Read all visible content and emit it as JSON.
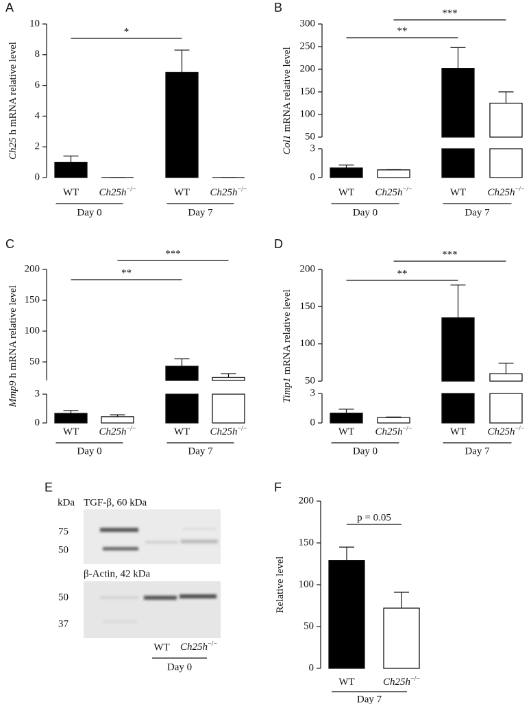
{
  "chart_data": [
    {
      "type": "bar",
      "panel": "A",
      "ylabel_gene": "Ch25",
      "ylabel": "h mRNA relative level",
      "categories": [
        "WT",
        "Ch25h",
        "WT",
        "Ch25h"
      ],
      "category_superscripts": [
        null,
        "−/−",
        null,
        "−/−"
      ],
      "groups": [
        "Day 0",
        "Day 7"
      ],
      "values": [
        1.0,
        0,
        6.85,
        0
      ],
      "errors": [
        0.4,
        0,
        1.45,
        0
      ],
      "colors": [
        "#000000",
        "#ffffff",
        "#000000",
        "#ffffff"
      ],
      "ylim": [
        0,
        10
      ],
      "yticks": [
        0,
        2,
        4,
        6,
        8,
        10
      ],
      "annotations": [
        "*"
      ]
    },
    {
      "type": "bar",
      "panel": "B",
      "ylabel_gene": "Col1",
      "ylabel": "mRNA relative level",
      "categories": [
        "WT",
        "Ch25h",
        "WT",
        "Ch25h"
      ],
      "category_superscripts": [
        null,
        "−/−",
        null,
        "−/−"
      ],
      "groups": [
        "Day 0",
        "Day 7"
      ],
      "values": [
        1.0,
        0.8,
        202,
        125
      ],
      "errors": [
        0.3,
        0.02,
        46,
        25
      ],
      "colors": [
        "#000000",
        "#ffffff",
        "#000000",
        "#ffffff"
      ],
      "ylim": [
        0,
        300
      ],
      "axis_break": [
        3,
        50
      ],
      "yticks": [
        0,
        3,
        50,
        100,
        150,
        200,
        250,
        300
      ],
      "annotations": [
        "**",
        "***"
      ]
    },
    {
      "type": "bar",
      "panel": "C",
      "ylabel_gene": "Mmp9",
      "ylabel": "h mRNA relative level",
      "categories": [
        "WT",
        "Ch25h",
        "WT",
        "Ch25h"
      ],
      "category_superscripts": [
        null,
        "−/−",
        null,
        "−/−"
      ],
      "groups": [
        "Day 0",
        "Day 7"
      ],
      "values": [
        1.0,
        0.65,
        43,
        25
      ],
      "errors": [
        0.3,
        0.2,
        12,
        6
      ],
      "colors": [
        "#000000",
        "#ffffff",
        "#000000",
        "#ffffff"
      ],
      "ylim": [
        0,
        200
      ],
      "axis_break": [
        3,
        20
      ],
      "yticks": [
        0,
        3,
        50,
        100,
        150,
        200
      ],
      "annotations": [
        "**",
        "***"
      ]
    },
    {
      "type": "bar",
      "panel": "D",
      "ylabel_gene": "Timp1",
      "ylabel": "mRNA relative level",
      "categories": [
        "WT",
        "Ch25h",
        "WT",
        "Ch25h"
      ],
      "category_superscripts": [
        null,
        "−/−",
        null,
        "−/−"
      ],
      "groups": [
        "Day 0",
        "Day 7"
      ],
      "values": [
        1.0,
        0.55,
        135,
        60
      ],
      "errors": [
        0.4,
        0.05,
        44,
        14
      ],
      "colors": [
        "#000000",
        "#ffffff",
        "#000000",
        "#ffffff"
      ],
      "ylim": [
        0,
        200
      ],
      "axis_break": [
        3,
        50
      ],
      "yticks": [
        0,
        3,
        50,
        100,
        150,
        200
      ],
      "annotations": [
        "**",
        "***"
      ]
    },
    {
      "type": "bar",
      "panel": "F",
      "ylabel": "Relative level",
      "categories": [
        "WT",
        "Ch25h"
      ],
      "category_superscripts": [
        null,
        "−/−"
      ],
      "groups": [
        "Day 7"
      ],
      "values": [
        129,
        72
      ],
      "errors": [
        16,
        19
      ],
      "colors": [
        "#000000",
        "#ffffff"
      ],
      "ylim": [
        0,
        200
      ],
      "yticks": [
        0,
        50,
        100,
        150,
        200
      ],
      "annotations": [
        "p = 0.05"
      ]
    }
  ],
  "blot": {
    "panel": "E",
    "unit": "kDa",
    "top_label": "TGF-β, 60 kDa",
    "top_markers": [
      "75",
      "50"
    ],
    "bottom_label": "β-Actin, 42 kDa",
    "bottom_markers": [
      "50",
      "37"
    ],
    "lanes": [
      "WT",
      "Ch25h"
    ],
    "lane_superscripts": [
      null,
      "−/−"
    ],
    "group": "Day 0"
  }
}
